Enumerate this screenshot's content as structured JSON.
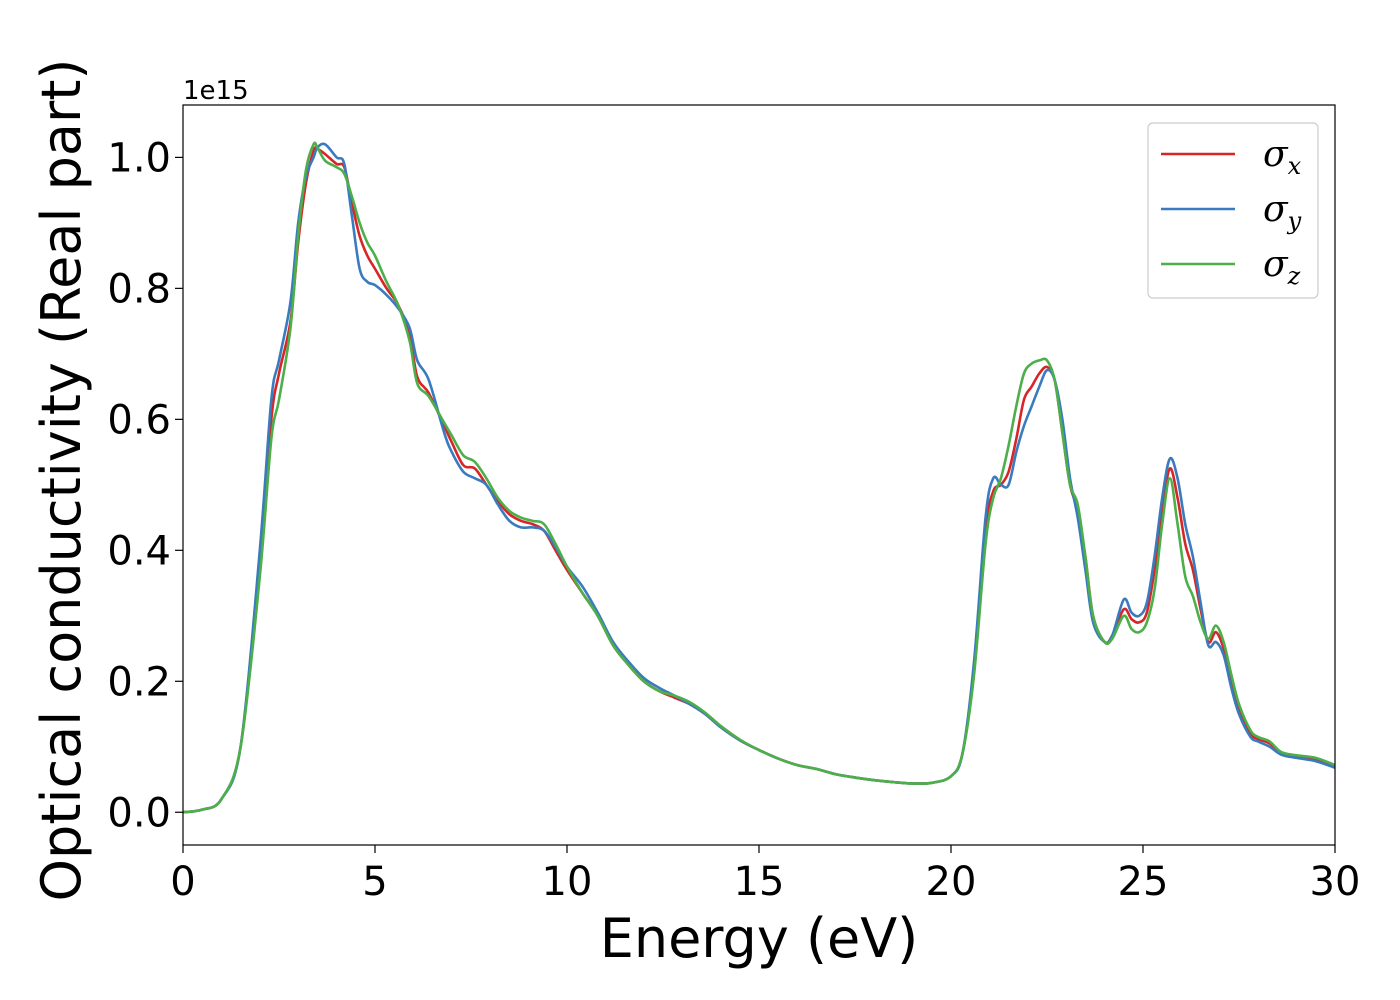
{
  "chart_data": {
    "type": "line",
    "xlabel": "Energy (eV)",
    "ylabel": "Optical conductivity (Real part)",
    "y_offset_text": "1e15",
    "xlim": [
      0,
      30
    ],
    "ylim": [
      -0.05,
      1.08
    ],
    "x_ticks": [
      0,
      5,
      10,
      15,
      20,
      25,
      30
    ],
    "x_tick_labels": [
      "0",
      "5",
      "10",
      "15",
      "20",
      "25",
      "30"
    ],
    "y_ticks": [
      0.0,
      0.2,
      0.4,
      0.6,
      0.8,
      1.0
    ],
    "y_tick_labels": [
      "0.0",
      "0.2",
      "0.4",
      "0.6",
      "0.8",
      "1.0"
    ],
    "grid": false,
    "legend_position": "top-right",
    "series": [
      {
        "name": "σx",
        "legend_symbol": "σ",
        "legend_subscript": "x",
        "color": "#d62728",
        "x": [
          0,
          0.5,
          1.0,
          1.5,
          2.0,
          2.3,
          2.5,
          2.8,
          3.0,
          3.2,
          3.4,
          3.5,
          3.7,
          4.0,
          4.2,
          4.4,
          4.6,
          4.8,
          5.0,
          5.3,
          5.6,
          5.9,
          6.1,
          6.4,
          6.8,
          7.0,
          7.3,
          7.6,
          7.9,
          8.2,
          8.5,
          8.8,
          9.1,
          9.4,
          9.7,
          10.0,
          10.4,
          10.8,
          11.2,
          11.6,
          12.0,
          12.4,
          12.8,
          13.2,
          13.6,
          14.0,
          14.5,
          15.0,
          15.5,
          16.0,
          16.5,
          17.0,
          17.5,
          18.0,
          18.5,
          19.0,
          19.5,
          20.0,
          20.3,
          20.6,
          20.9,
          21.1,
          21.3,
          21.5,
          21.7,
          21.9,
          22.1,
          22.3,
          22.5,
          22.7,
          22.9,
          23.1,
          23.3,
          23.5,
          23.7,
          24.0,
          24.2,
          24.5,
          24.7,
          24.9,
          25.1,
          25.3,
          25.5,
          25.7,
          25.9,
          26.1,
          26.3,
          26.5,
          26.7,
          26.9,
          27.1,
          27.3,
          27.5,
          27.8,
          28.0,
          28.3,
          28.6,
          29.0,
          29.5,
          30.0
        ],
        "y": [
          0.0,
          0.004,
          0.02,
          0.1,
          0.38,
          0.6,
          0.67,
          0.75,
          0.87,
          0.96,
          1.01,
          1.013,
          1.005,
          0.99,
          0.985,
          0.93,
          0.88,
          0.85,
          0.83,
          0.8,
          0.775,
          0.73,
          0.665,
          0.64,
          0.59,
          0.565,
          0.53,
          0.525,
          0.5,
          0.475,
          0.455,
          0.445,
          0.44,
          0.43,
          0.4,
          0.37,
          0.335,
          0.3,
          0.255,
          0.225,
          0.2,
          0.185,
          0.175,
          0.165,
          0.15,
          0.13,
          0.11,
          0.095,
          0.082,
          0.072,
          0.066,
          0.058,
          0.053,
          0.049,
          0.046,
          0.044,
          0.045,
          0.055,
          0.09,
          0.22,
          0.43,
          0.49,
          0.5,
          0.52,
          0.57,
          0.63,
          0.65,
          0.67,
          0.68,
          0.66,
          0.58,
          0.5,
          0.46,
          0.39,
          0.3,
          0.26,
          0.27,
          0.31,
          0.295,
          0.29,
          0.305,
          0.37,
          0.46,
          0.525,
          0.48,
          0.41,
          0.37,
          0.31,
          0.26,
          0.275,
          0.25,
          0.2,
          0.16,
          0.12,
          0.112,
          0.105,
          0.09,
          0.085,
          0.08,
          0.07
        ]
      },
      {
        "name": "σy",
        "legend_symbol": "σ",
        "legend_subscript": "y",
        "color": "#3a7bbf",
        "x": [
          0,
          0.5,
          1.0,
          1.5,
          2.0,
          2.3,
          2.5,
          2.8,
          3.0,
          3.2,
          3.4,
          3.5,
          3.7,
          4.0,
          4.2,
          4.4,
          4.6,
          4.8,
          5.0,
          5.3,
          5.6,
          5.9,
          6.1,
          6.4,
          6.8,
          7.0,
          7.3,
          7.6,
          7.9,
          8.2,
          8.5,
          8.8,
          9.1,
          9.4,
          9.7,
          10.0,
          10.4,
          10.8,
          11.2,
          11.6,
          12.0,
          12.4,
          12.8,
          13.2,
          13.6,
          14.0,
          14.5,
          15.0,
          15.5,
          16.0,
          16.5,
          17.0,
          17.5,
          18.0,
          18.5,
          19.0,
          19.5,
          20.0,
          20.3,
          20.6,
          20.9,
          21.1,
          21.3,
          21.5,
          21.7,
          21.9,
          22.1,
          22.3,
          22.5,
          22.7,
          22.9,
          23.1,
          23.3,
          23.5,
          23.7,
          24.0,
          24.2,
          24.5,
          24.7,
          24.9,
          25.1,
          25.3,
          25.5,
          25.7,
          25.9,
          26.1,
          26.3,
          26.5,
          26.7,
          26.9,
          27.1,
          27.3,
          27.5,
          27.8,
          28.0,
          28.3,
          28.6,
          29.0,
          29.5,
          30.0
        ],
        "y": [
          0.0,
          0.004,
          0.02,
          0.1,
          0.4,
          0.63,
          0.69,
          0.78,
          0.9,
          0.97,
          1.0,
          1.015,
          1.02,
          1.0,
          0.99,
          0.91,
          0.83,
          0.81,
          0.805,
          0.79,
          0.77,
          0.74,
          0.69,
          0.66,
          0.58,
          0.55,
          0.52,
          0.51,
          0.5,
          0.47,
          0.445,
          0.435,
          0.435,
          0.43,
          0.405,
          0.375,
          0.345,
          0.305,
          0.26,
          0.23,
          0.205,
          0.19,
          0.178,
          0.165,
          0.15,
          0.13,
          0.11,
          0.095,
          0.082,
          0.072,
          0.066,
          0.058,
          0.053,
          0.049,
          0.046,
          0.044,
          0.045,
          0.055,
          0.09,
          0.23,
          0.45,
          0.51,
          0.5,
          0.5,
          0.55,
          0.59,
          0.62,
          0.65,
          0.675,
          0.66,
          0.6,
          0.51,
          0.45,
          0.37,
          0.29,
          0.26,
          0.27,
          0.325,
          0.305,
          0.3,
          0.32,
          0.39,
          0.48,
          0.54,
          0.51,
          0.44,
          0.39,
          0.32,
          0.255,
          0.26,
          0.24,
          0.19,
          0.15,
          0.115,
          0.108,
          0.1,
          0.088,
          0.083,
          0.078,
          0.068
        ]
      },
      {
        "name": "σz",
        "legend_symbol": "σ",
        "legend_subscript": "z",
        "color": "#4daf4a",
        "x": [
          0,
          0.5,
          1.0,
          1.5,
          2.0,
          2.3,
          2.5,
          2.8,
          3.0,
          3.2,
          3.4,
          3.5,
          3.7,
          4.0,
          4.2,
          4.4,
          4.6,
          4.8,
          5.0,
          5.3,
          5.6,
          5.9,
          6.1,
          6.4,
          6.8,
          7.0,
          7.3,
          7.6,
          7.9,
          8.2,
          8.5,
          8.8,
          9.1,
          9.4,
          9.7,
          10.0,
          10.4,
          10.8,
          11.2,
          11.6,
          12.0,
          12.4,
          12.8,
          13.2,
          13.6,
          14.0,
          14.5,
          15.0,
          15.5,
          16.0,
          16.5,
          17.0,
          17.5,
          18.0,
          18.5,
          19.0,
          19.5,
          20.0,
          20.3,
          20.6,
          20.9,
          21.1,
          21.3,
          21.5,
          21.7,
          21.9,
          22.1,
          22.3,
          22.5,
          22.7,
          22.9,
          23.1,
          23.3,
          23.5,
          23.7,
          24.0,
          24.2,
          24.5,
          24.7,
          24.9,
          25.1,
          25.3,
          25.5,
          25.7,
          25.9,
          26.1,
          26.3,
          26.5,
          26.7,
          26.9,
          27.1,
          27.3,
          27.5,
          27.8,
          28.0,
          28.3,
          28.6,
          29.0,
          29.5,
          30.0
        ],
        "y": [
          0.0,
          0.004,
          0.02,
          0.1,
          0.36,
          0.57,
          0.63,
          0.74,
          0.88,
          0.98,
          1.02,
          1.015,
          0.995,
          0.985,
          0.975,
          0.94,
          0.9,
          0.87,
          0.85,
          0.81,
          0.775,
          0.72,
          0.655,
          0.635,
          0.595,
          0.575,
          0.545,
          0.535,
          0.51,
          0.48,
          0.46,
          0.45,
          0.445,
          0.44,
          0.41,
          0.375,
          0.335,
          0.3,
          0.255,
          0.225,
          0.2,
          0.185,
          0.178,
          0.168,
          0.152,
          0.132,
          0.111,
          0.095,
          0.082,
          0.072,
          0.066,
          0.058,
          0.053,
          0.049,
          0.046,
          0.044,
          0.045,
          0.055,
          0.09,
          0.21,
          0.41,
          0.48,
          0.51,
          0.56,
          0.62,
          0.67,
          0.685,
          0.69,
          0.69,
          0.66,
          0.58,
          0.5,
          0.47,
          0.39,
          0.3,
          0.26,
          0.265,
          0.3,
          0.28,
          0.275,
          0.29,
          0.34,
          0.44,
          0.51,
          0.44,
          0.36,
          0.33,
          0.29,
          0.265,
          0.285,
          0.26,
          0.21,
          0.165,
          0.125,
          0.115,
          0.108,
          0.092,
          0.087,
          0.083,
          0.072
        ]
      }
    ]
  }
}
